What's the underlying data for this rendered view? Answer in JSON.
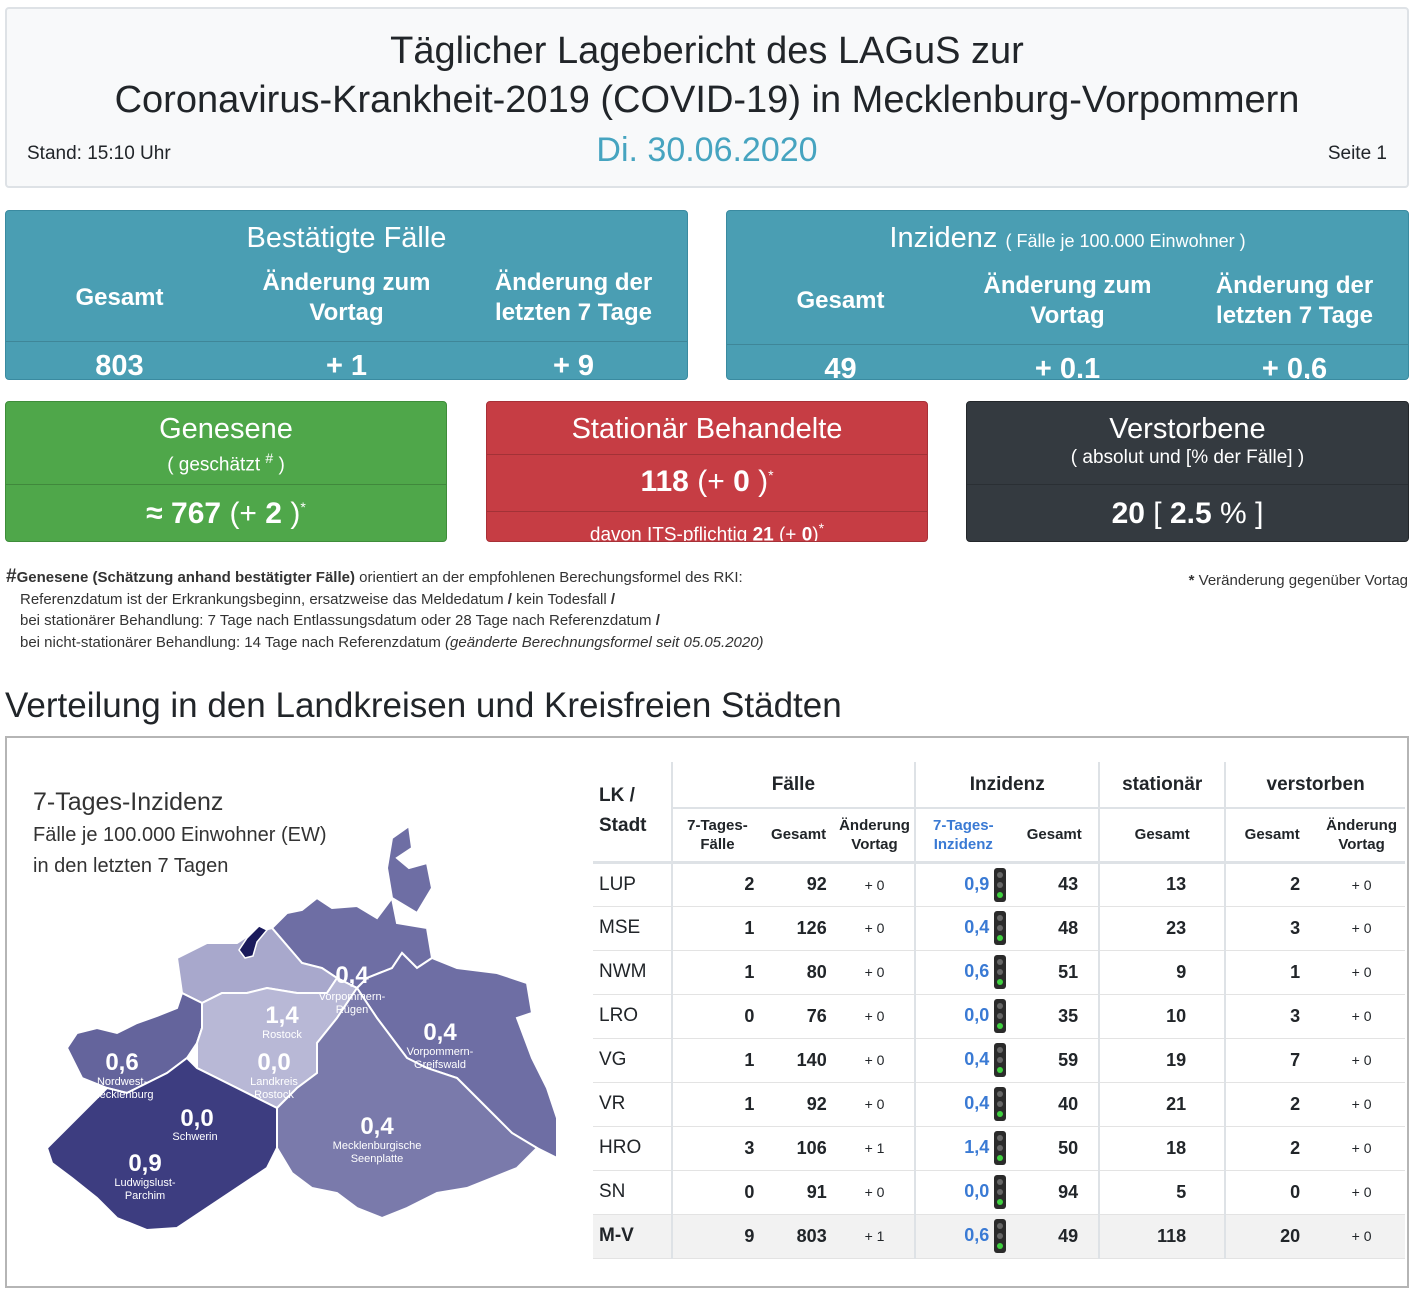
{
  "header": {
    "title_line1": "Täglicher Lagebericht des LAGuS zur",
    "title_line2": "Coronavirus-Krankheit-2019 (COVID-19) in Mecklenburg-Vorpommern",
    "stand": "Stand: 15:10 Uhr",
    "date": "Di. 30.06.2020",
    "page": "Seite 1"
  },
  "confirmed": {
    "title": "Bestätigte Fälle",
    "col1": "Gesamt",
    "col2a": "Änderung zum",
    "col2b": "Vortag",
    "col3a": "Änderung der",
    "col3b": "letzten 7 Tage",
    "total": "803",
    "change_day": "+ 1",
    "change_7": "+ 9"
  },
  "incidence": {
    "title": "Inzidenz",
    "subtitle": "( Fälle je 100.000 Einwohner )",
    "col1": "Gesamt",
    "col2a": "Änderung zum",
    "col2b": "Vortag",
    "col3a": "Änderung der",
    "col3b": "letzten 7 Tage",
    "total": "49",
    "change_day": "+ 0.1",
    "change_7": "+ 0,6"
  },
  "recovered": {
    "title": "Genesene",
    "sub": "( geschätzt",
    "sub_mark": "#",
    "sub_end": ")",
    "approx": "≈",
    "value": "767",
    "change_open": "(+",
    "change": "2",
    "change_close": ")",
    "mark": "*"
  },
  "hospital": {
    "title": "Stationär Behandelte",
    "value": "118",
    "change_open": "(+",
    "change": "0",
    "change_close": ")",
    "mark": "*",
    "its_label": "davon ITS-pflichtig",
    "its_value": "21",
    "its_change_open": "(+",
    "its_change": "0",
    "its_change_close": ")",
    "its_mark": "*"
  },
  "deaths": {
    "title": "Verstorbene",
    "sub": "( absolut und [% der Fälle] )",
    "value": "20",
    "pct_open": "[",
    "pct": "2.5",
    "pct_unit": "%",
    "pct_close": "]"
  },
  "notes": {
    "hash": "#",
    "line1_bold": "Genesene (Schätzung anhand bestätigter Fälle)",
    "line1_rest": "orientiert an der empfohlenen Berechungsformel des RKI:",
    "line2": "Referenzdatum ist der Erkrankungsbeginn, ersatzweise das Meldedatum",
    "line2_b": "kein Todesfall",
    "line3": "bei stationärer Behandlung: 7 Tage nach Entlassungsdatum oder 28 Tage nach Referenzdatum",
    "line4": "bei nicht-stationärer Behandlung: 14 Tage nach Referenzdatum",
    "line4_italic": "(geänderte Berechnungsformel seit 05.05.2020)",
    "slash": "/",
    "aster_mark": "*",
    "aster": "Veränderung gegenüber Vortag"
  },
  "section_title": "Verteilung in den Landkreisen und Kreisfreien Städten",
  "map": {
    "title": "7-Tages-Inzidenz",
    "sub1": "Fälle je 100.000 Einwohner (EW)",
    "sub2": "in den letzten 7 Tagen",
    "regions": [
      {
        "value": "0,4",
        "name1": "Vorpommern-",
        "name2": "Rügen",
        "color": "#6e6ea4"
      },
      {
        "value": "1,4",
        "name1": "Rostock",
        "name2": "",
        "color": "#a8a8cc"
      },
      {
        "value": "0,4",
        "name1": "Vorpommern-",
        "name2": "Greifswald",
        "color": "#6e6ea4"
      },
      {
        "value": "0,6",
        "name1": "Nordwest-",
        "name2": "mecklenburg",
        "color": "#64649c"
      },
      {
        "value": "0,0",
        "name1": "Landkreis",
        "name2": "Rostock",
        "color": "#b8b8d6"
      },
      {
        "value": "0,0",
        "name1": "Schwerin",
        "name2": "",
        "color": "#c8c8e0"
      },
      {
        "value": "0,4",
        "name1": "Mecklenburgische",
        "name2": "Seenplatte",
        "color": "#7a7aab"
      },
      {
        "value": "0,9",
        "name1": "Ludwigslust-",
        "name2": "Parchim",
        "color": "#3d3d80"
      }
    ]
  },
  "table": {
    "header_lk1": "LK /",
    "header_lk2": "Stadt",
    "group_faelle": "Fälle",
    "group_inzidenz": "Inzidenz",
    "group_stationaer": "stationär",
    "group_verstorben": "verstorben",
    "sub_7tf1": "7-Tages-",
    "sub_7tf2": "Fälle",
    "sub_gesamt": "Gesamt",
    "sub_aend1": "Änderung",
    "sub_aend2": "Vortag",
    "sub_7ti1": "7-Tages-",
    "sub_7ti2": "Inzidenz",
    "rows": [
      {
        "name": "LUP",
        "f7": "2",
        "fg": "92",
        "fchg": "+ 0",
        "i7": "0,9",
        "ig": "43",
        "st": "13",
        "vg": "2",
        "vchg": "+ 0"
      },
      {
        "name": "MSE",
        "f7": "1",
        "fg": "126",
        "fchg": "+ 0",
        "i7": "0,4",
        "ig": "48",
        "st": "23",
        "vg": "3",
        "vchg": "+ 0"
      },
      {
        "name": "NWM",
        "f7": "1",
        "fg": "80",
        "fchg": "+ 0",
        "i7": "0,6",
        "ig": "51",
        "st": "9",
        "vg": "1",
        "vchg": "+ 0"
      },
      {
        "name": "LRO",
        "f7": "0",
        "fg": "76",
        "fchg": "+ 0",
        "i7": "0,0",
        "ig": "35",
        "st": "10",
        "vg": "3",
        "vchg": "+ 0"
      },
      {
        "name": "VG",
        "f7": "1",
        "fg": "140",
        "fchg": "+ 0",
        "i7": "0,4",
        "ig": "59",
        "st": "19",
        "vg": "7",
        "vchg": "+ 0"
      },
      {
        "name": "VR",
        "f7": "1",
        "fg": "92",
        "fchg": "+ 0",
        "i7": "0,4",
        "ig": "40",
        "st": "21",
        "vg": "2",
        "vchg": "+ 0"
      },
      {
        "name": "HRO",
        "f7": "3",
        "fg": "106",
        "fchg": "+ 1",
        "i7": "1,4",
        "ig": "50",
        "st": "18",
        "vg": "2",
        "vchg": "+ 0"
      },
      {
        "name": "SN",
        "f7": "0",
        "fg": "91",
        "fchg": "+ 0",
        "i7": "0,0",
        "ig": "94",
        "st": "5",
        "vg": "0",
        "vchg": "+ 0"
      },
      {
        "name": "M-V",
        "f7": "9",
        "fg": "803",
        "fchg": "+ 1",
        "i7": "0,6",
        "ig": "49",
        "st": "118",
        "vg": "20",
        "vchg": "+ 0"
      }
    ]
  }
}
